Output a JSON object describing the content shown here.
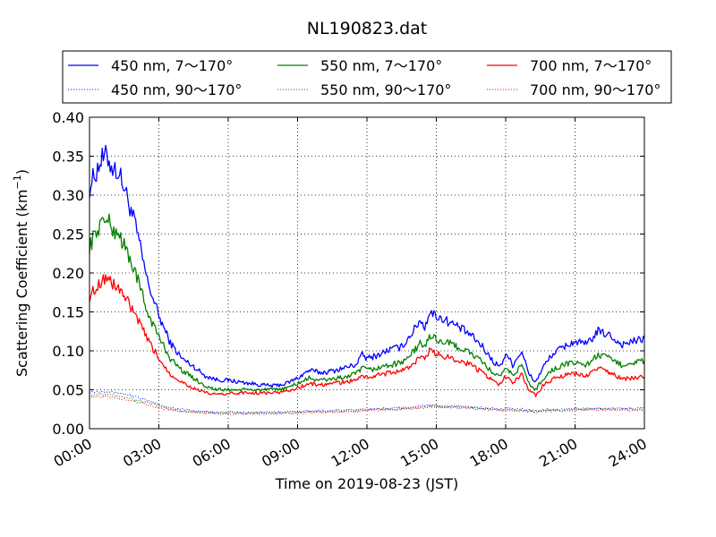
{
  "chart_data": {
    "type": "line",
    "title": "NL190823.dat",
    "xlabel": "Time on 2019-08-23 (JST)",
    "ylabel": "Scattering Coefficient (km",
    "ylabel_sup": "−1",
    "ylabel_end": ")",
    "xlim": [
      0,
      24
    ],
    "ylim": [
      0,
      0.4
    ],
    "x_unit": "hours",
    "x_ticks": [
      0,
      3,
      6,
      9,
      12,
      15,
      18,
      21,
      24
    ],
    "x_tick_labels": [
      "00:00",
      "03:00",
      "06:00",
      "09:00",
      "12:00",
      "15:00",
      "18:00",
      "21:00",
      "24:00"
    ],
    "y_ticks": [
      0,
      0.05,
      0.1,
      0.15,
      0.2,
      0.25,
      0.3,
      0.35,
      0.4
    ],
    "y_tick_labels": [
      "0.00",
      "0.05",
      "0.10",
      "0.15",
      "0.20",
      "0.25",
      "0.30",
      "0.35",
      "0.40"
    ],
    "grid": true,
    "legend_position": "above plot",
    "x": [
      0,
      0.5,
      0.75,
      1,
      1.25,
      1.5,
      2,
      2.5,
      3,
      3.5,
      4,
      4.5,
      5,
      5.5,
      6,
      6.5,
      7,
      7.5,
      8,
      8.5,
      9,
      9.5,
      10,
      10.5,
      11,
      11.5,
      11.8,
      12,
      12.5,
      13,
      13.5,
      14,
      14.3,
      14.5,
      14.7,
      15,
      15.5,
      16,
      16.5,
      17,
      17.5,
      17.8,
      18,
      18.3,
      18.7,
      19,
      19.3,
      19.6,
      20,
      20.5,
      21,
      21.5,
      22,
      22.5,
      23,
      23.5,
      24
    ],
    "series": [
      {
        "name": "450 nm, 7～170°",
        "color": "#0000ff",
        "dash": "solid",
        "values": [
          0.31,
          0.345,
          0.35,
          0.335,
          0.33,
          0.31,
          0.26,
          0.19,
          0.145,
          0.11,
          0.09,
          0.08,
          0.068,
          0.063,
          0.062,
          0.06,
          0.058,
          0.056,
          0.055,
          0.058,
          0.065,
          0.075,
          0.072,
          0.074,
          0.078,
          0.082,
          0.095,
          0.09,
          0.095,
          0.102,
          0.105,
          0.125,
          0.14,
          0.13,
          0.15,
          0.145,
          0.138,
          0.13,
          0.12,
          0.105,
          0.085,
          0.08,
          0.098,
          0.082,
          0.1,
          0.07,
          0.06,
          0.078,
          0.095,
          0.105,
          0.112,
          0.108,
          0.125,
          0.12,
          0.108,
          0.112,
          0.115
        ]
      },
      {
        "name": "450 nm, 90～170°",
        "color": "#0000ff",
        "dash": "dotted",
        "values": [
          0.047,
          0.048,
          0.048,
          0.047,
          0.046,
          0.045,
          0.041,
          0.036,
          0.031,
          0.027,
          0.025,
          0.023,
          0.022,
          0.021,
          0.021,
          0.021,
          0.021,
          0.021,
          0.021,
          0.022,
          0.022,
          0.023,
          0.023,
          0.023,
          0.024,
          0.024,
          0.025,
          0.025,
          0.026,
          0.026,
          0.027,
          0.028,
          0.029,
          0.029,
          0.03,
          0.03,
          0.029,
          0.029,
          0.028,
          0.027,
          0.026,
          0.025,
          0.026,
          0.025,
          0.025,
          0.024,
          0.023,
          0.024,
          0.025,
          0.025,
          0.026,
          0.026,
          0.026,
          0.026,
          0.026,
          0.026,
          0.026
        ]
      },
      {
        "name": "550 nm, 7～170°",
        "color": "#008000",
        "dash": "solid",
        "values": [
          0.235,
          0.265,
          0.27,
          0.255,
          0.252,
          0.235,
          0.2,
          0.15,
          0.118,
          0.09,
          0.075,
          0.065,
          0.055,
          0.05,
          0.05,
          0.05,
          0.05,
          0.05,
          0.05,
          0.052,
          0.058,
          0.065,
          0.062,
          0.064,
          0.066,
          0.07,
          0.078,
          0.075,
          0.078,
          0.082,
          0.085,
          0.098,
          0.11,
          0.104,
          0.12,
          0.115,
          0.11,
          0.104,
          0.097,
          0.085,
          0.07,
          0.066,
          0.08,
          0.068,
          0.082,
          0.058,
          0.05,
          0.064,
          0.075,
          0.082,
          0.085,
          0.082,
          0.095,
          0.09,
          0.082,
          0.085,
          0.087
        ]
      },
      {
        "name": "550 nm, 90～170°",
        "color": "#008000",
        "dash": "dotted",
        "values": [
          0.043,
          0.044,
          0.044,
          0.043,
          0.042,
          0.041,
          0.037,
          0.033,
          0.029,
          0.025,
          0.023,
          0.022,
          0.021,
          0.02,
          0.02,
          0.02,
          0.02,
          0.02,
          0.02,
          0.021,
          0.021,
          0.022,
          0.022,
          0.022,
          0.023,
          0.023,
          0.024,
          0.024,
          0.025,
          0.025,
          0.026,
          0.027,
          0.028,
          0.028,
          0.029,
          0.029,
          0.028,
          0.028,
          0.027,
          0.026,
          0.025,
          0.024,
          0.025,
          0.024,
          0.024,
          0.023,
          0.022,
          0.023,
          0.024,
          0.024,
          0.025,
          0.025,
          0.025,
          0.025,
          0.025,
          0.025,
          0.025
        ]
      },
      {
        "name": "700 nm, 7～170°",
        "color": "#ff0000",
        "dash": "solid",
        "values": [
          0.17,
          0.19,
          0.195,
          0.185,
          0.182,
          0.17,
          0.145,
          0.115,
          0.09,
          0.07,
          0.06,
          0.052,
          0.046,
          0.044,
          0.045,
          0.046,
          0.046,
          0.046,
          0.046,
          0.048,
          0.052,
          0.058,
          0.056,
          0.058,
          0.06,
          0.062,
          0.068,
          0.066,
          0.069,
          0.072,
          0.074,
          0.083,
          0.092,
          0.088,
          0.1,
          0.096,
          0.092,
          0.088,
          0.082,
          0.072,
          0.06,
          0.056,
          0.068,
          0.058,
          0.07,
          0.05,
          0.043,
          0.055,
          0.063,
          0.068,
          0.07,
          0.068,
          0.078,
          0.072,
          0.064,
          0.065,
          0.066
        ]
      },
      {
        "name": "700 nm, 90～170°",
        "color": "#ff0000",
        "dash": "dotted",
        "values": [
          0.04,
          0.041,
          0.041,
          0.04,
          0.039,
          0.038,
          0.035,
          0.031,
          0.027,
          0.024,
          0.022,
          0.021,
          0.02,
          0.019,
          0.019,
          0.019,
          0.019,
          0.019,
          0.019,
          0.02,
          0.02,
          0.021,
          0.021,
          0.021,
          0.022,
          0.022,
          0.023,
          0.023,
          0.024,
          0.024,
          0.025,
          0.026,
          0.027,
          0.027,
          0.028,
          0.028,
          0.027,
          0.027,
          0.026,
          0.025,
          0.024,
          0.023,
          0.024,
          0.023,
          0.023,
          0.022,
          0.021,
          0.022,
          0.023,
          0.023,
          0.024,
          0.024,
          0.024,
          0.024,
          0.024,
          0.024,
          0.024
        ]
      }
    ]
  }
}
